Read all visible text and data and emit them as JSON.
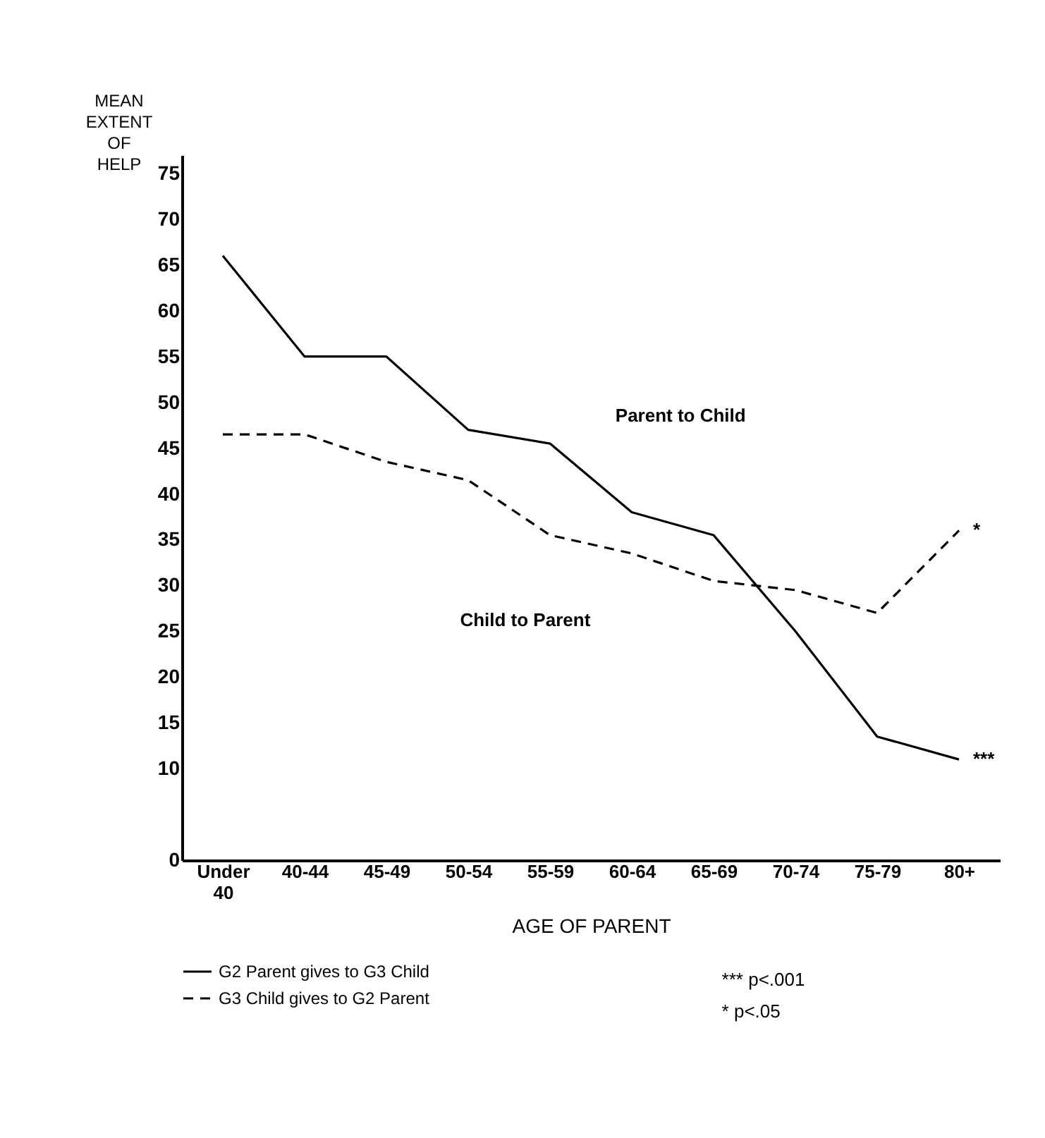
{
  "chart_data": {
    "type": "line",
    "categories": [
      "Under 40",
      "40-44",
      "45-49",
      "50-54",
      "55-59",
      "60-64",
      "65-69",
      "70-74",
      "75-79",
      "80+"
    ],
    "series": [
      {
        "name": "G2 Parent gives to G3 Child",
        "color": "#000000",
        "line_style": "solid",
        "values": [
          66,
          55,
          55,
          47,
          45.5,
          38,
          35.5,
          25,
          13.5,
          11
        ]
      },
      {
        "name": "G3 Child gives to G2 Parent",
        "color": "#000000",
        "line_style": "dashed",
        "values": [
          46.5,
          46.5,
          43.5,
          41.5,
          35.5,
          33.5,
          30.5,
          29.5,
          27,
          36
        ]
      }
    ],
    "xlabel": "AGE OF PARENT",
    "ylabel": "MEAN EXTENT OF HELP",
    "ylim": [
      0,
      77
    ],
    "yticks": [
      0,
      10,
      15,
      20,
      25,
      30,
      35,
      40,
      45,
      50,
      55,
      60,
      65,
      70,
      75
    ],
    "annotations": [
      "Parent to Child",
      "Child to Parent",
      {
        "text": "***",
        "x": "80+",
        "y": 11
      },
      {
        "text": "*",
        "x": "80+",
        "y": 36
      },
      "*** p<.001",
      "* p<.05"
    ],
    "legend": "bottom",
    "grid": false,
    "marker": "none"
  }
}
